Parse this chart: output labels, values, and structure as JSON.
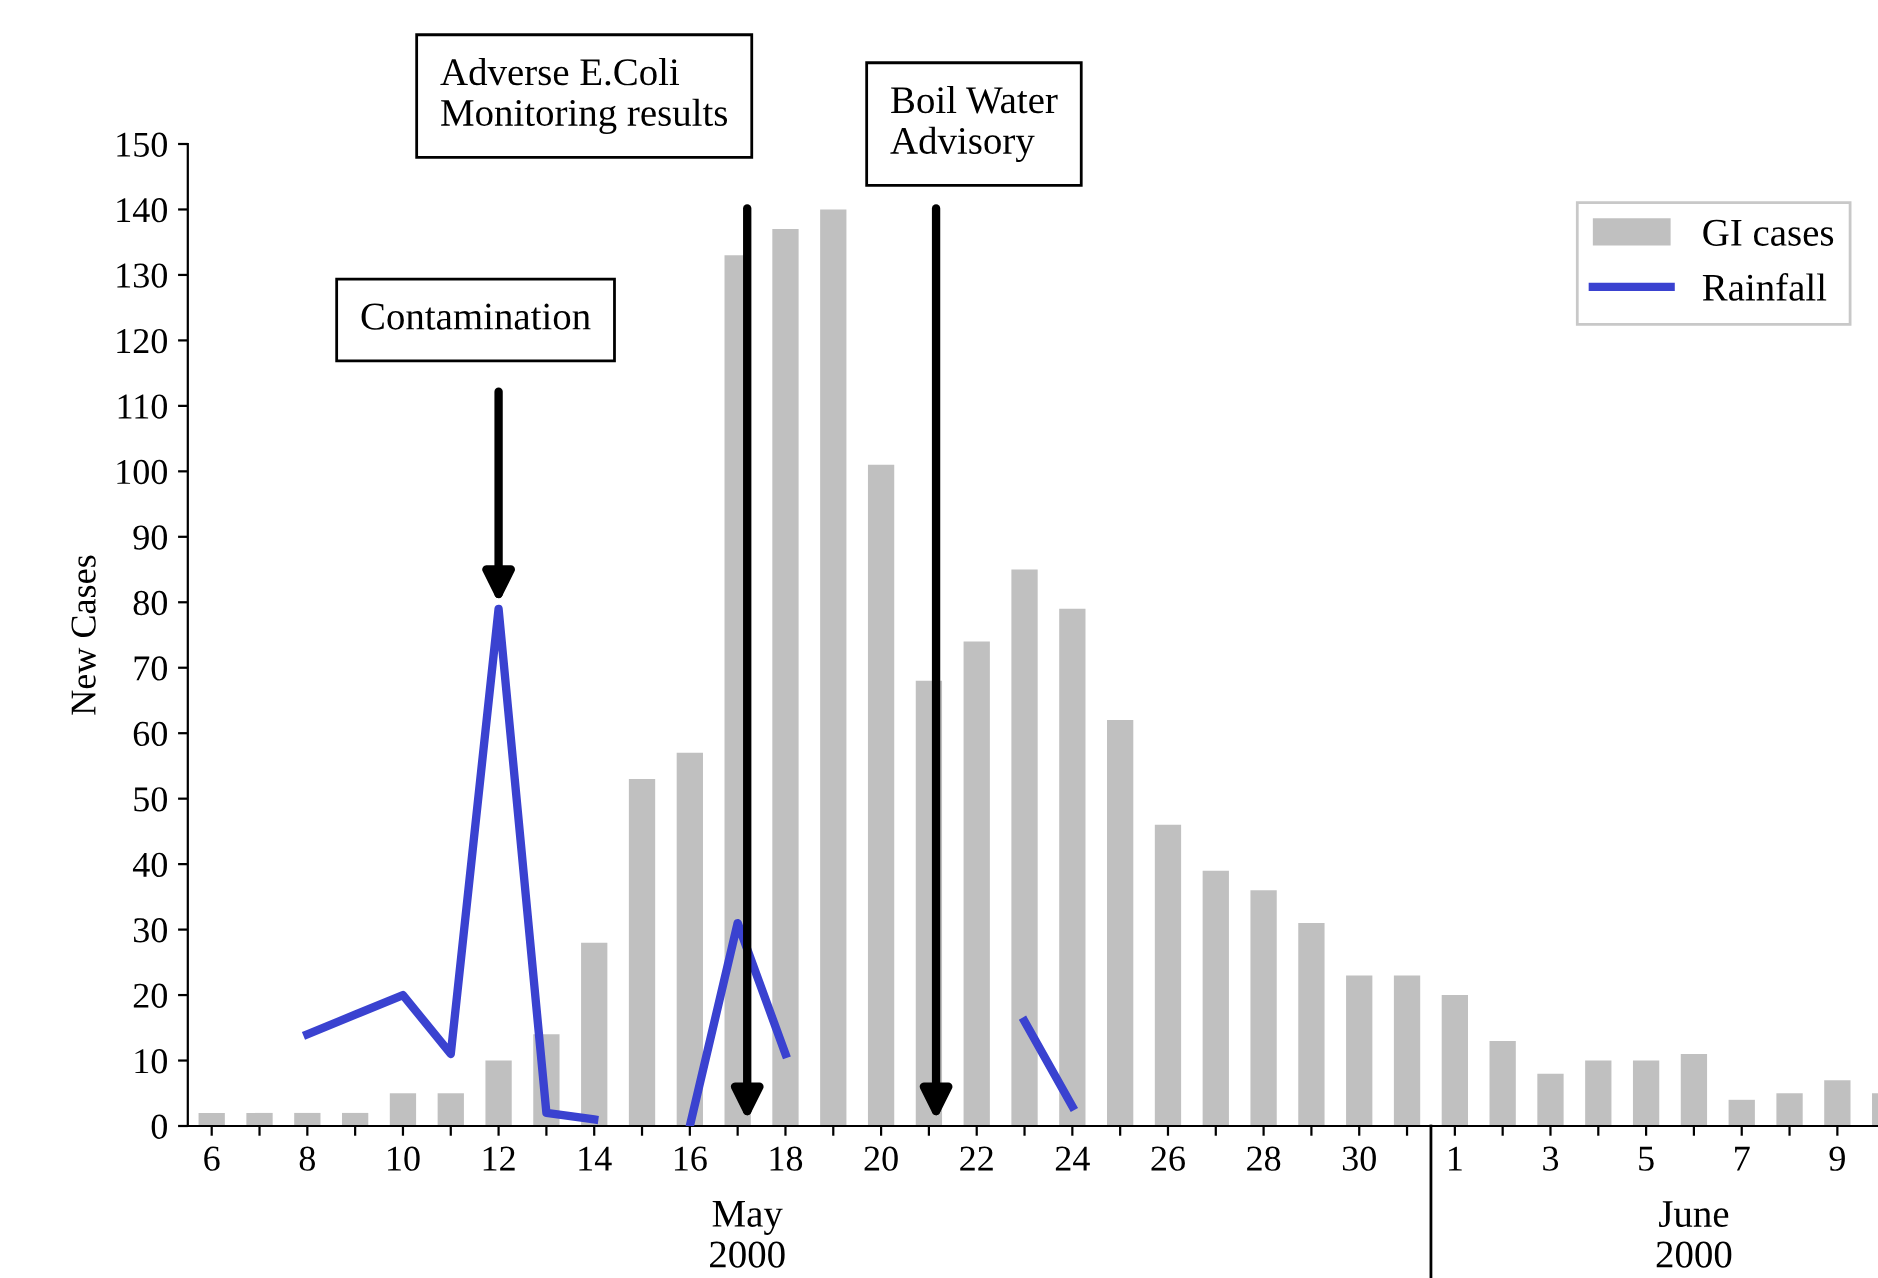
{
  "chart_data": {
    "type": "bar",
    "ylabel": "New Cases",
    "categories": [
      "6",
      null,
      "8",
      null,
      "10",
      null,
      "12",
      null,
      "14",
      null,
      "16",
      null,
      "18",
      null,
      "20",
      null,
      "22",
      null,
      "24",
      null,
      "26",
      null,
      "28",
      null,
      "30",
      null,
      "1",
      null,
      "3",
      null,
      "5",
      null,
      "7",
      null,
      "9",
      null
    ],
    "series": [
      {
        "name": "GI cases",
        "color": "#c0c0c0",
        "values": [
          2,
          2,
          2,
          2,
          5,
          5,
          10,
          14,
          28,
          53,
          57,
          133,
          137,
          140,
          101,
          68,
          74,
          85,
          79,
          62,
          46,
          39,
          36,
          31,
          23,
          23,
          20,
          13,
          8,
          10,
          10,
          11,
          4,
          5,
          7,
          5
        ]
      },
      {
        "name": "Rainfall",
        "type": "line",
        "color": "#3a42d0",
        "values": [
          null,
          null,
          14,
          17,
          20,
          11,
          79,
          2,
          1,
          null,
          0,
          31,
          11,
          null,
          null,
          null,
          null,
          16,
          3,
          null,
          null,
          null,
          null,
          null,
          null,
          null,
          null,
          null,
          null,
          null,
          null,
          null,
          null,
          null,
          null,
          null
        ]
      }
    ],
    "ylim": [
      0,
      150
    ],
    "yticks": [
      0,
      10,
      20,
      30,
      40,
      50,
      60,
      70,
      80,
      90,
      100,
      110,
      120,
      130,
      140,
      150
    ],
    "legend": "top right",
    "grid": false,
    "annotations": [
      "Contamination",
      "Adverse E.Coli\nMonitoring results",
      "Boil Water\nAdvisory",
      "May\n2000",
      "June\n2000"
    ]
  }
}
